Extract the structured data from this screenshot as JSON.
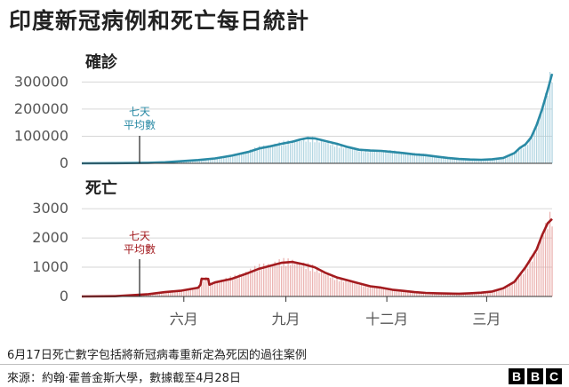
{
  "title": "印度新冠病例和死亡每日統計",
  "footnote": "6月17日死亡數字包括將新冠病毒重新定為死因的過往案例",
  "source": "來源：約翰·霍普金斯大學，數據截至4月28日",
  "logo": [
    "B",
    "B",
    "C"
  ],
  "colors": {
    "cases": "#2a8aa5",
    "cases_fill": "#a6cfdd",
    "deaths": "#a31b1f",
    "deaths_fill": "#e8a7a4"
  },
  "chart_data": [
    {
      "type": "area",
      "title": "確診",
      "annotation": "七天\n平均數",
      "x_unit": "days since 2020-03-01",
      "xlim": [
        0,
        424
      ],
      "x_ticks": [
        {
          "x": 92,
          "label": "六月"
        },
        {
          "x": 184,
          "label": "九月"
        },
        {
          "x": 275,
          "label": "十二月"
        },
        {
          "x": 365,
          "label": "三月"
        }
      ],
      "ylim": [
        0,
        370000
      ],
      "y_ticks": [
        0,
        100000,
        200000,
        300000
      ],
      "y_tick_labels": [
        "0",
        "100000",
        "200000",
        "300000"
      ],
      "x": [
        0,
        30,
        60,
        75,
        90,
        105,
        120,
        135,
        150,
        160,
        170,
        180,
        185,
        190,
        197,
        203,
        210,
        220,
        230,
        240,
        250,
        260,
        270,
        280,
        290,
        300,
        310,
        320,
        330,
        340,
        350,
        360,
        370,
        380,
        390,
        395,
        400,
        405,
        410,
        415,
        420,
        424
      ],
      "series": [
        {
          "name": "七天平均數",
          "values": [
            0,
            500,
            2000,
            4000,
            8000,
            12000,
            18000,
            28000,
            42000,
            55000,
            63000,
            72000,
            76000,
            80000,
            88000,
            93000,
            92000,
            82000,
            72000,
            60000,
            50000,
            47000,
            46000,
            42000,
            38000,
            33000,
            30000,
            25000,
            20000,
            16000,
            14000,
            13000,
            15000,
            20000,
            38000,
            57000,
            70000,
            95000,
            140000,
            200000,
            270000,
            330000
          ]
        }
      ]
    },
    {
      "type": "area",
      "title": "死亡",
      "annotation": "七天\n平均數",
      "x_unit": "days since 2020-03-01",
      "xlim": [
        0,
        424
      ],
      "x_ticks": [
        {
          "x": 92,
          "label": "六月"
        },
        {
          "x": 184,
          "label": "九月"
        },
        {
          "x": 275,
          "label": "十二月"
        },
        {
          "x": 365,
          "label": "三月"
        }
      ],
      "ylim": [
        0,
        3400
      ],
      "y_ticks": [
        0,
        1000,
        2000,
        3000
      ],
      "y_tick_labels": [
        "0",
        "1000",
        "2000",
        "3000"
      ],
      "x": [
        0,
        30,
        60,
        75,
        90,
        105,
        107,
        108,
        114,
        115,
        120,
        135,
        150,
        160,
        170,
        180,
        190,
        200,
        210,
        220,
        230,
        240,
        250,
        260,
        270,
        280,
        290,
        300,
        310,
        320,
        330,
        340,
        350,
        360,
        370,
        380,
        390,
        395,
        400,
        405,
        410,
        415,
        420,
        424
      ],
      "series": [
        {
          "name": "七天平均數",
          "values": [
            0,
            10,
            80,
            150,
            200,
            300,
            400,
            600,
            600,
            400,
            480,
            600,
            800,
            950,
            1050,
            1150,
            1180,
            1100,
            1000,
            800,
            650,
            550,
            450,
            350,
            300,
            230,
            190,
            150,
            120,
            110,
            100,
            95,
            110,
            130,
            170,
            280,
            500,
            750,
            1000,
            1300,
            1600,
            2100,
            2500,
            2650
          ]
        }
      ]
    }
  ]
}
